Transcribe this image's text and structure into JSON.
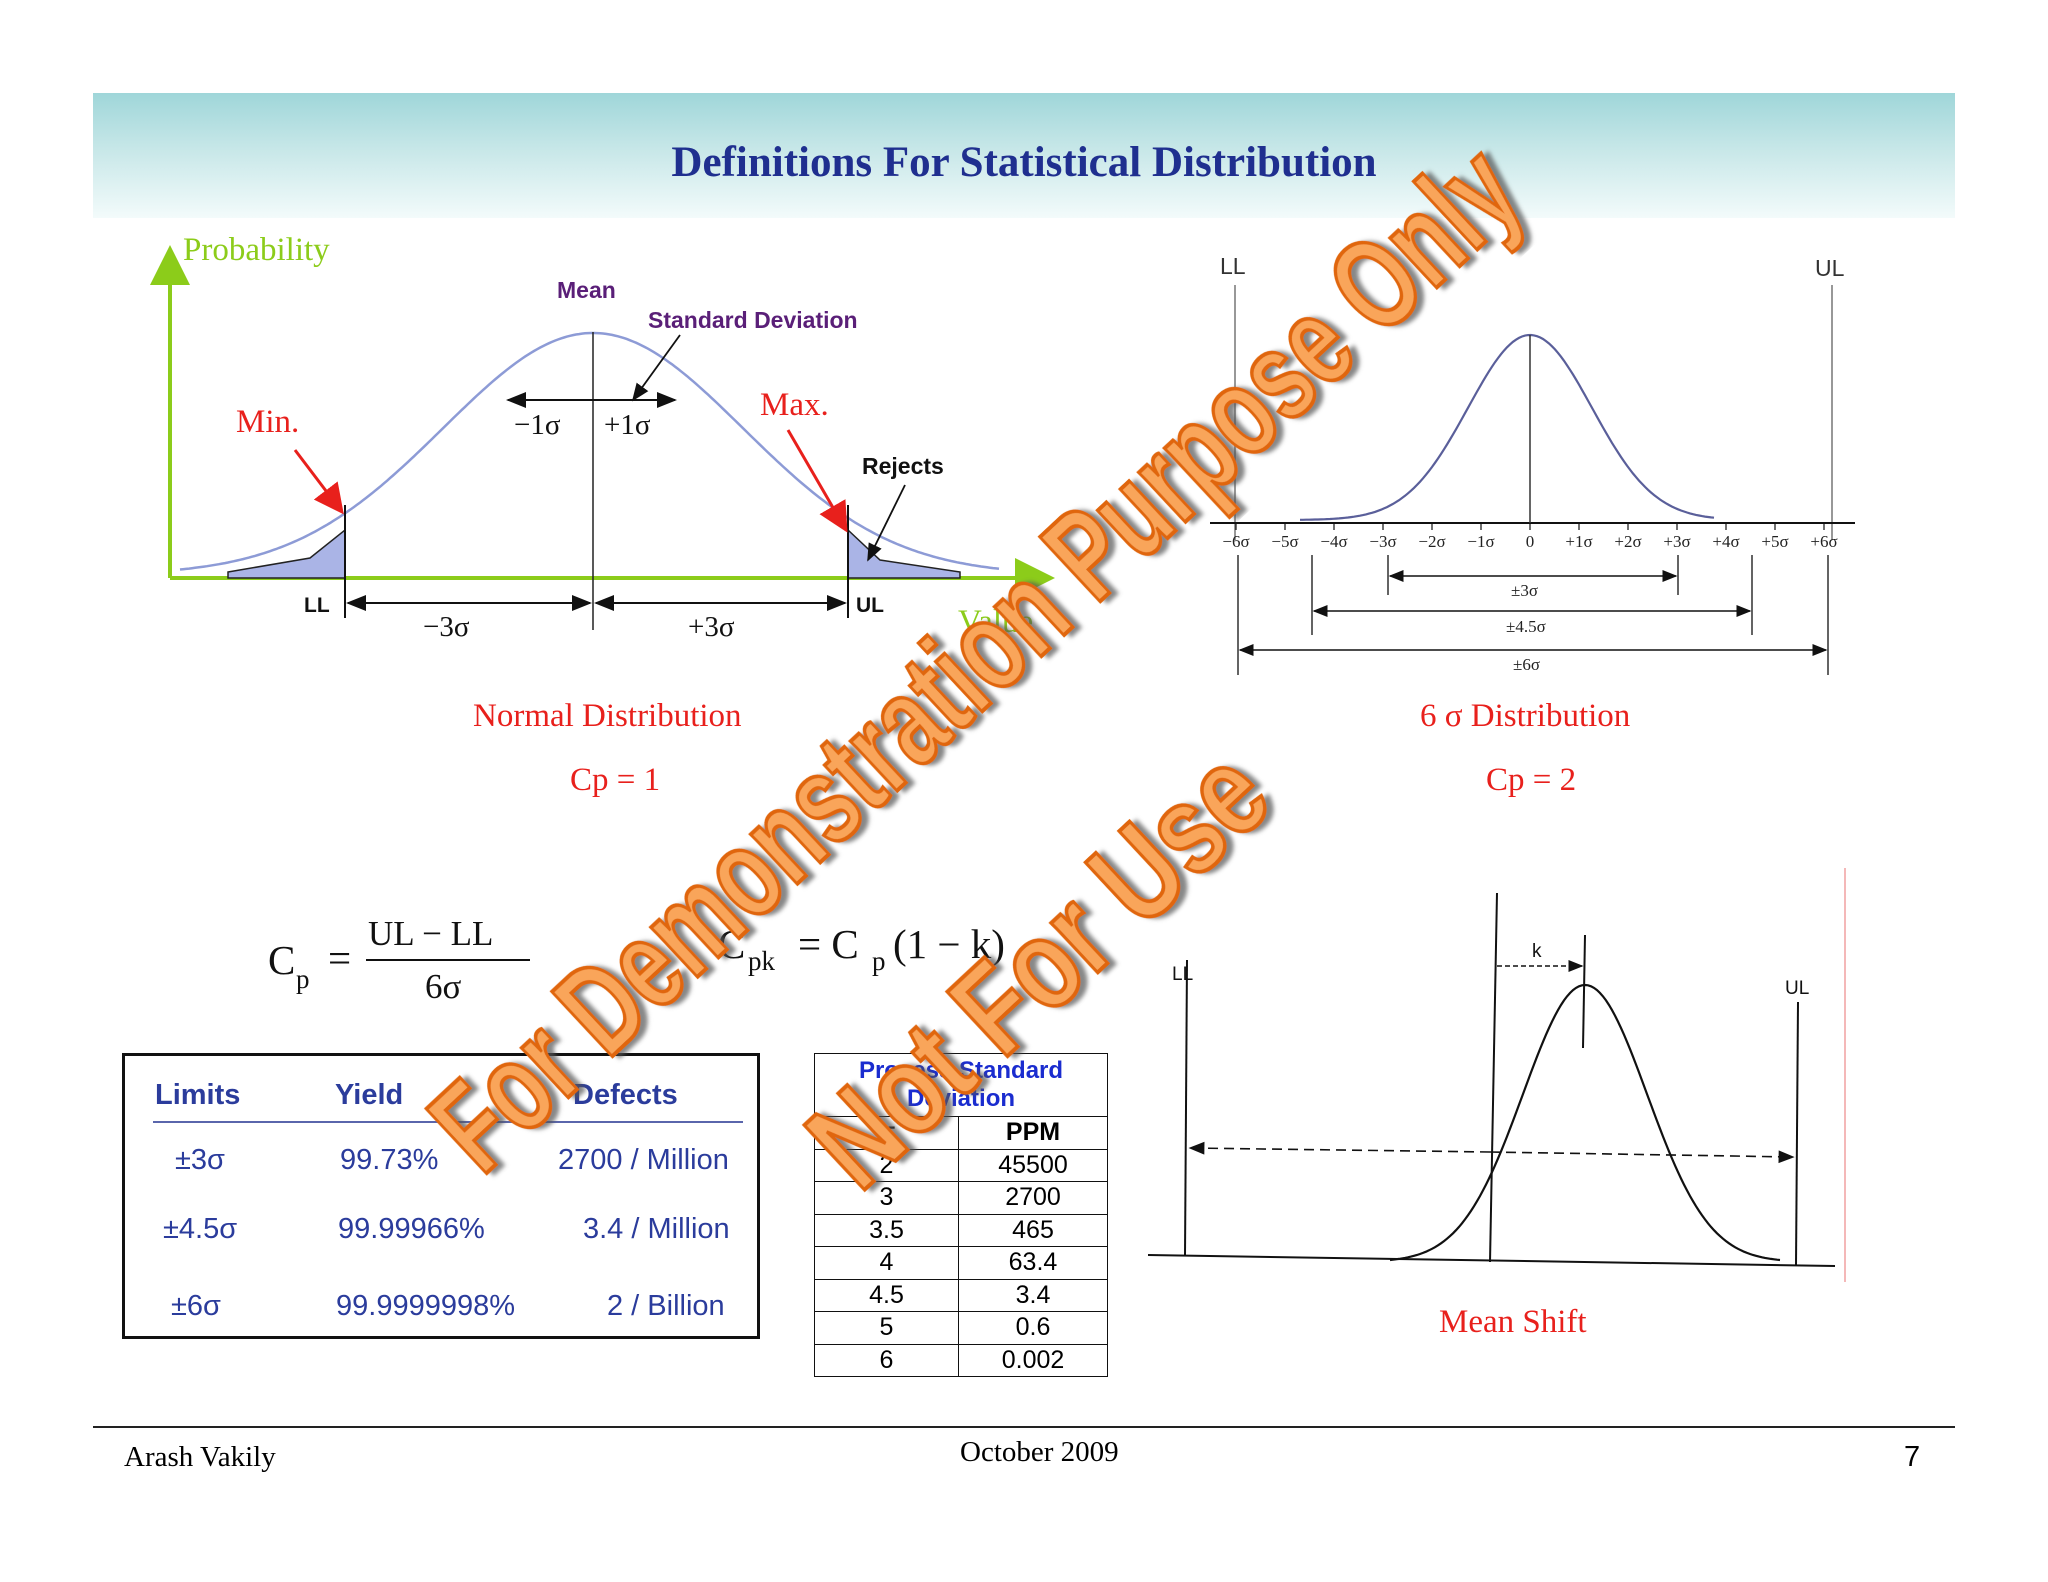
{
  "title": "Definitions For Statistical Distribution",
  "normal_chart": {
    "ylabel": "Probability",
    "xlabel": "Value",
    "mean_label": "Mean",
    "std_label": "Standard Deviation",
    "minus1": "−1σ",
    "plus1": "+1σ",
    "min_label": "Min.",
    "max_label": "Max.",
    "rejects_label": "Rejects",
    "ll_label": "LL",
    "ul_label": "UL",
    "minus3": "−3σ",
    "plus3": "+3σ",
    "caption": "Normal Distribution",
    "cp": "Cp = 1"
  },
  "six_sigma_chart": {
    "ll_label": "LL",
    "ul_label": "UL",
    "ticks": [
      "−6σ",
      "−5σ",
      "−4σ",
      "−3σ",
      "−2σ",
      "−1σ",
      "0",
      "+1σ",
      "+2σ",
      "+3σ",
      "+4σ",
      "+5σ",
      "+6σ"
    ],
    "span3": "±3σ",
    "span45": "±4.5σ",
    "span6": "±6σ",
    "caption": "6 σ Distribution",
    "cp": "Cp = 2"
  },
  "formulas": {
    "cp_lhs": "C",
    "cp_sub": "p",
    "cp_eq": "=",
    "cp_num": "UL − LL",
    "cp_den": "6σ",
    "cpk_lhs": "C",
    "cpk_sub": "pk",
    "cpk_rhs": "= C",
    "cpk_rhs_sub": "p",
    "cpk_tail": "(1 − k)"
  },
  "yield_table": {
    "headers": [
      "Limits",
      "Yield",
      "Defects"
    ],
    "rows": [
      [
        "±3σ",
        "99.73%",
        "2700 / Million"
      ],
      [
        "±4.5σ",
        "99.99966%",
        "3.4 / Million"
      ],
      [
        "±6σ",
        "99.9999998%",
        "2 / Billion"
      ]
    ]
  },
  "ppm_table": {
    "title": "Process Standard Deviation",
    "headers": [
      "σ",
      "PPM"
    ],
    "rows": [
      [
        "2",
        "45500"
      ],
      [
        "3",
        "2700"
      ],
      [
        "3.5",
        "465"
      ],
      [
        "4",
        "63.4"
      ],
      [
        "4.5",
        "3.4"
      ],
      [
        "5",
        "0.6"
      ],
      [
        "6",
        "0.002"
      ]
    ]
  },
  "mean_shift_chart": {
    "ll_label": "LL",
    "ul_label": "UL",
    "k_label": "k",
    "caption": "Mean Shift"
  },
  "footer": {
    "author": "Arash Vakily",
    "date": "October 2009",
    "page": "7"
  },
  "watermark": {
    "line1": "For Demonstration Purpose Only",
    "line2": "Not For Use",
    "fill_color": "#f9a55a",
    "stroke_color": "#e0660f"
  },
  "colors": {
    "title": "#1f2f8f",
    "caption_red": "#e8201c",
    "axis_green": "#8ccc1a",
    "curve_blue": "#8d9bd6",
    "tail_fill": "#aab4e6",
    "purple_label": "#5a1f78",
    "table_blue": "#2b3c9c"
  }
}
